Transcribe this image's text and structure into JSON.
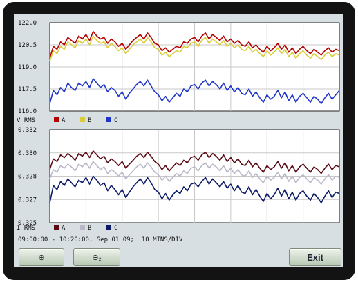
{
  "buttons": {
    "zoom_in_icon": "zoom-in-icon",
    "zoom_out_icon": "zoom-out-icon",
    "zoom_in_label": "⊕",
    "zoom_out_label": "⊖₂",
    "exit_label": "Exit"
  },
  "footer": "09:00:00 - 10:20:00, Sep 01 09;  10 MINS/DIV",
  "chart_data": [
    {
      "type": "line",
      "ylim": [
        116.0,
        122.0
      ],
      "y_ticks": [
        "122.0",
        "120.5",
        "119.0",
        "117.5",
        "116.0"
      ],
      "legend_title": "V RMS",
      "x": [
        0,
        1,
        2,
        3,
        4,
        5,
        6,
        7,
        8,
        9,
        10,
        11,
        12,
        13,
        14,
        15,
        16,
        17,
        18,
        19,
        20,
        21,
        22,
        23,
        24,
        25,
        26,
        27,
        28,
        29,
        30,
        31,
        32,
        33,
        34,
        35,
        36,
        37,
        38,
        39,
        40,
        41,
        42,
        43,
        44,
        45,
        46,
        47,
        48,
        49,
        50,
        51,
        52,
        53,
        54,
        55,
        56,
        57,
        58,
        59,
        60,
        61,
        62,
        63,
        64,
        65,
        66,
        67,
        68,
        69,
        70,
        71,
        72,
        73,
        74,
        75,
        76,
        77,
        78,
        79,
        80
      ],
      "series": [
        {
          "name": "A",
          "color": "#b30000",
          "values": [
            119.6,
            120.4,
            120.2,
            120.7,
            120.5,
            121.0,
            120.8,
            120.6,
            121.1,
            120.9,
            121.2,
            120.8,
            121.4,
            121.1,
            120.9,
            121.0,
            120.6,
            120.9,
            120.7,
            120.4,
            120.6,
            120.2,
            120.5,
            120.8,
            121.0,
            121.2,
            120.9,
            121.3,
            121.0,
            120.6,
            120.5,
            120.1,
            120.3,
            120.0,
            120.2,
            120.4,
            120.3,
            120.7,
            120.6,
            120.9,
            121.0,
            120.7,
            121.1,
            121.3,
            120.9,
            121.2,
            121.0,
            120.8,
            121.1,
            120.7,
            120.9,
            120.6,
            120.8,
            120.5,
            120.4,
            120.7,
            120.3,
            120.5,
            120.2,
            120.0,
            120.4,
            120.1,
            120.3,
            120.6,
            120.2,
            120.5,
            120.0,
            120.3,
            119.9,
            120.2,
            120.4,
            120.1,
            119.9,
            120.2,
            120.0,
            119.8,
            120.1,
            120.3,
            120.0,
            120.2,
            120.1
          ]
        },
        {
          "name": "B",
          "color": "#d8cc3a",
          "values": [
            119.4,
            120.1,
            119.9,
            120.4,
            120.2,
            120.7,
            120.5,
            120.3,
            120.8,
            120.6,
            120.9,
            120.5,
            121.1,
            120.8,
            120.6,
            120.7,
            120.3,
            120.6,
            120.4,
            120.1,
            120.3,
            119.9,
            120.2,
            120.5,
            120.7,
            120.9,
            120.6,
            121.0,
            120.7,
            120.3,
            120.2,
            119.8,
            120.0,
            119.7,
            119.9,
            120.1,
            120.0,
            120.4,
            120.3,
            120.6,
            120.7,
            120.4,
            120.8,
            121.0,
            120.6,
            120.9,
            120.7,
            120.5,
            120.8,
            120.4,
            120.6,
            120.3,
            120.5,
            120.2,
            120.1,
            120.4,
            120.0,
            120.2,
            119.9,
            119.7,
            120.1,
            119.8,
            120.0,
            120.3,
            119.9,
            120.2,
            119.7,
            120.0,
            119.6,
            119.9,
            120.1,
            119.8,
            119.6,
            119.9,
            119.7,
            119.5,
            119.8,
            120.0,
            119.7,
            119.9,
            119.8
          ]
        },
        {
          "name": "C",
          "color": "#1e35c8",
          "values": [
            116.5,
            117.4,
            117.1,
            117.6,
            117.3,
            117.9,
            117.6,
            117.4,
            117.9,
            117.7,
            118.0,
            117.6,
            118.2,
            117.9,
            117.6,
            117.8,
            117.3,
            117.6,
            117.4,
            117.0,
            117.3,
            116.8,
            117.2,
            117.5,
            117.8,
            118.0,
            117.7,
            118.1,
            117.7,
            117.3,
            117.1,
            116.7,
            117.0,
            116.6,
            116.9,
            117.2,
            117.0,
            117.5,
            117.3,
            117.7,
            117.8,
            117.5,
            117.9,
            118.1,
            117.7,
            118.0,
            117.8,
            117.5,
            117.9,
            117.4,
            117.7,
            117.3,
            117.6,
            117.2,
            117.1,
            117.5,
            117.0,
            117.3,
            116.9,
            116.6,
            117.1,
            116.8,
            117.0,
            117.4,
            116.9,
            117.3,
            116.7,
            117.1,
            116.6,
            117.0,
            117.2,
            116.9,
            116.6,
            117.0,
            116.8,
            116.5,
            116.9,
            117.2,
            116.8,
            117.1,
            117.4
          ]
        }
      ]
    },
    {
      "type": "line",
      "ylim": [
        0.325,
        0.332
      ],
      "y_ticks": [
        "0.332",
        "0.330",
        "0.328",
        "0.327",
        "0.325"
      ],
      "legend_title": "I RMS",
      "x": [
        0,
        1,
        2,
        3,
        4,
        5,
        6,
        7,
        8,
        9,
        10,
        11,
        12,
        13,
        14,
        15,
        16,
        17,
        18,
        19,
        20,
        21,
        22,
        23,
        24,
        25,
        26,
        27,
        28,
        29,
        30,
        31,
        32,
        33,
        34,
        35,
        36,
        37,
        38,
        39,
        40,
        41,
        42,
        43,
        44,
        45,
        46,
        47,
        48,
        49,
        50,
        51,
        52,
        53,
        54,
        55,
        56,
        57,
        58,
        59,
        60,
        61,
        62,
        63,
        64,
        65,
        66,
        67,
        68,
        69,
        70,
        71,
        72,
        73,
        74,
        75,
        76,
        77,
        78,
        79,
        80
      ],
      "series": [
        {
          "name": "A",
          "color": "#5a0a14",
          "values": [
            0.329,
            0.3298,
            0.3296,
            0.3301,
            0.3299,
            0.3302,
            0.33,
            0.3297,
            0.3302,
            0.33,
            0.3303,
            0.3299,
            0.3304,
            0.3301,
            0.3298,
            0.33,
            0.3295,
            0.3298,
            0.3296,
            0.3293,
            0.3296,
            0.3291,
            0.3294,
            0.3297,
            0.33,
            0.3302,
            0.3299,
            0.3303,
            0.33,
            0.3296,
            0.3294,
            0.329,
            0.3293,
            0.3289,
            0.3292,
            0.3295,
            0.3293,
            0.3297,
            0.3295,
            0.3299,
            0.33,
            0.3297,
            0.3301,
            0.3303,
            0.3299,
            0.3302,
            0.33,
            0.3297,
            0.3301,
            0.3296,
            0.3299,
            0.3295,
            0.3298,
            0.3294,
            0.3293,
            0.3297,
            0.3292,
            0.3295,
            0.3291,
            0.3288,
            0.3293,
            0.329,
            0.3292,
            0.3296,
            0.3291,
            0.3295,
            0.3289,
            0.3293,
            0.3288,
            0.3292,
            0.3294,
            0.3291,
            0.3288,
            0.3292,
            0.329,
            0.3287,
            0.3291,
            0.3294,
            0.329,
            0.3293,
            0.3292
          ]
        },
        {
          "name": "B",
          "color": "#b8b8c8",
          "values": [
            0.3283,
            0.329,
            0.3288,
            0.3293,
            0.3291,
            0.3294,
            0.3292,
            0.3289,
            0.3294,
            0.3292,
            0.3295,
            0.3291,
            0.3296,
            0.3293,
            0.329,
            0.3292,
            0.3287,
            0.329,
            0.3288,
            0.3285,
            0.3288,
            0.3283,
            0.3286,
            0.3289,
            0.3292,
            0.3294,
            0.3291,
            0.3295,
            0.3292,
            0.3288,
            0.3286,
            0.3282,
            0.3285,
            0.3281,
            0.3284,
            0.3287,
            0.3285,
            0.3289,
            0.3287,
            0.3291,
            0.3292,
            0.3289,
            0.3293,
            0.3295,
            0.3291,
            0.3294,
            0.3292,
            0.3289,
            0.3293,
            0.3288,
            0.3291,
            0.3287,
            0.329,
            0.3286,
            0.3285,
            0.3289,
            0.3284,
            0.3287,
            0.3283,
            0.328,
            0.3285,
            0.3282,
            0.3284,
            0.3288,
            0.3283,
            0.3287,
            0.3281,
            0.3285,
            0.328,
            0.3284,
            0.3286,
            0.3283,
            0.328,
            0.3284,
            0.3282,
            0.3279,
            0.3283,
            0.3286,
            0.3282,
            0.3285,
            0.3284
          ]
        },
        {
          "name": "C",
          "color": "#0c1a66",
          "values": [
            0.3265,
            0.3278,
            0.3275,
            0.3281,
            0.3278,
            0.3283,
            0.328,
            0.3277,
            0.3282,
            0.328,
            0.3284,
            0.3279,
            0.3285,
            0.3282,
            0.3278,
            0.328,
            0.3274,
            0.3278,
            0.3275,
            0.3271,
            0.3275,
            0.3269,
            0.3273,
            0.3277,
            0.328,
            0.3283,
            0.3279,
            0.3284,
            0.328,
            0.3275,
            0.3273,
            0.3268,
            0.3272,
            0.3267,
            0.3271,
            0.3274,
            0.3272,
            0.3277,
            0.3274,
            0.3279,
            0.328,
            0.3277,
            0.3281,
            0.3284,
            0.3279,
            0.3283,
            0.328,
            0.3277,
            0.3281,
            0.3276,
            0.3279,
            0.3274,
            0.3278,
            0.3273,
            0.3272,
            0.3277,
            0.3271,
            0.3275,
            0.327,
            0.3266,
            0.3272,
            0.3268,
            0.3271,
            0.3276,
            0.327,
            0.3275,
            0.3268,
            0.3273,
            0.3267,
            0.3272,
            0.3274,
            0.327,
            0.3267,
            0.3272,
            0.3269,
            0.3265,
            0.327,
            0.3274,
            0.3269,
            0.3273,
            0.3272
          ]
        }
      ]
    }
  ]
}
